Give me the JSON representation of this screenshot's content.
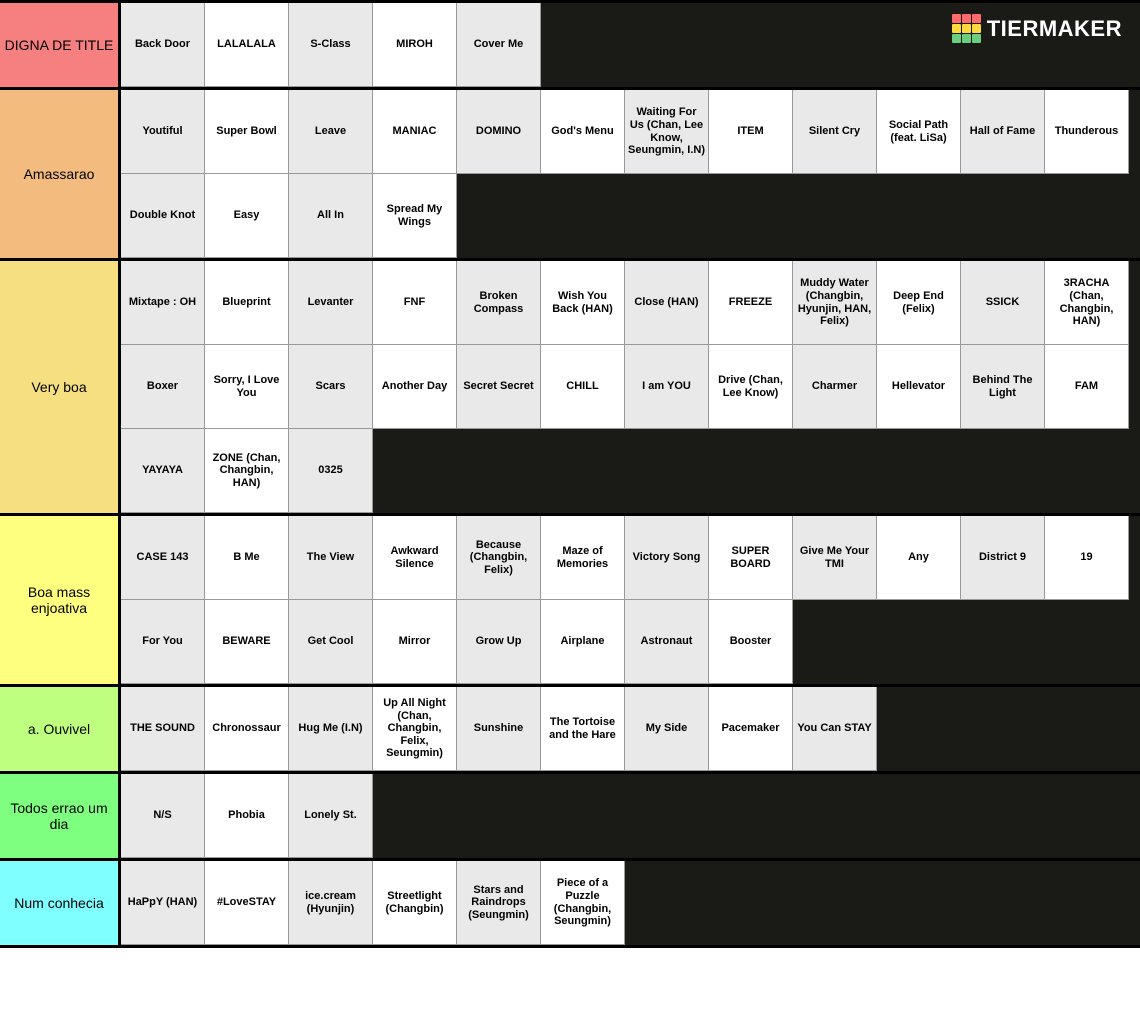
{
  "logo": {
    "text": "TIERMAKER"
  },
  "logo_colors": {
    "row1": [
      "#ff6b6b",
      "#ff6b6b",
      "#ff6b6b"
    ],
    "row2": [
      "#ffd93d",
      "#ffd93d",
      "#ffd93d"
    ],
    "row3": [
      "#6bcf7f",
      "#6bcf7f",
      "#6bcf7f"
    ]
  },
  "item_colors": {
    "odd": "#e9e9e9",
    "even": "#ffffff"
  },
  "background": "#1a1a17",
  "tiers": [
    {
      "label": "DIGNA DE TITLE",
      "color": "#f67f7f",
      "items": [
        "Back Door",
        "LALALALA",
        "S-Class",
        "MIROH",
        "Cover Me"
      ]
    },
    {
      "label": "Amassarao",
      "color": "#f3bb7e",
      "items": [
        "Youtiful",
        "Super Bowl",
        "Leave",
        "MANIAC",
        "DOMINO",
        "God's Menu",
        "Waiting For Us (Chan, Lee Know, Seungmin, I.N)",
        "ITEM",
        "Silent Cry",
        "Social Path (feat. LiSa)",
        "Hall of Fame",
        "Thunderous",
        "Double Knot",
        "Easy",
        "All In",
        "Spread My Wings"
      ]
    },
    {
      "label": "Very boa",
      "color": "#f5df80",
      "items": [
        "Mixtape : OH",
        "Blueprint",
        "Levanter",
        "FNF",
        "Broken Compass",
        "Wish You Back (HAN)",
        "Close (HAN)",
        "FREEZE",
        "Muddy Water (Changbin, Hyunjin, HAN, Felix)",
        "Deep End (Felix)",
        "SSICK",
        "3RACHA (Chan, Changbin, HAN)",
        "Boxer",
        "Sorry, I Love You",
        "Scars",
        "Another Day",
        "Secret Secret",
        "CHILL",
        "I am YOU",
        "Drive (Chan, Lee Know)",
        "Charmer",
        "Hellevator",
        "Behind The Light",
        "FAM",
        "YAYAYA",
        "ZONE (Chan, Changbin, HAN)",
        "0325"
      ]
    },
    {
      "label": "Boa mass enjoativa",
      "color": "#feff7f",
      "items": [
        "CASE 143",
        "B Me",
        "The View",
        "Awkward Silence",
        "Because (Changbin, Felix)",
        "Maze of Memories",
        "Victory Song",
        "SUPER BOARD",
        "Give Me Your TMI",
        "Any",
        "District 9",
        "19",
        "For You",
        "BEWARE",
        "Get Cool",
        "Mirror",
        "Grow Up",
        "Airplane",
        "Astronaut",
        "Booster"
      ]
    },
    {
      "label": "a. Ouvivel",
      "color": "#beff7f",
      "items": [
        "THE SOUND",
        "Chronossaur",
        "Hug Me (I.N)",
        "Up All Night (Chan, Changbin, Felix, Seungmin)",
        "Sunshine",
        "The Tortoise and the Hare",
        "My Side",
        "Pacemaker",
        "You Can STAY"
      ]
    },
    {
      "label": "Todos errao um dia",
      "color": "#7fff7f",
      "items": [
        "N/S",
        "Phobia",
        "Lonely St."
      ]
    },
    {
      "label": "Num conhecia",
      "color": "#7fffff",
      "items": [
        "HaPpY (HAN)",
        "#LoveSTAY",
        "ice.cream (Hyunjin)",
        "Streetlight (Changbin)",
        "Stars and Raindrops (Seungmin)",
        "Piece of a Puzzle (Changbin, Seungmin)"
      ]
    }
  ]
}
